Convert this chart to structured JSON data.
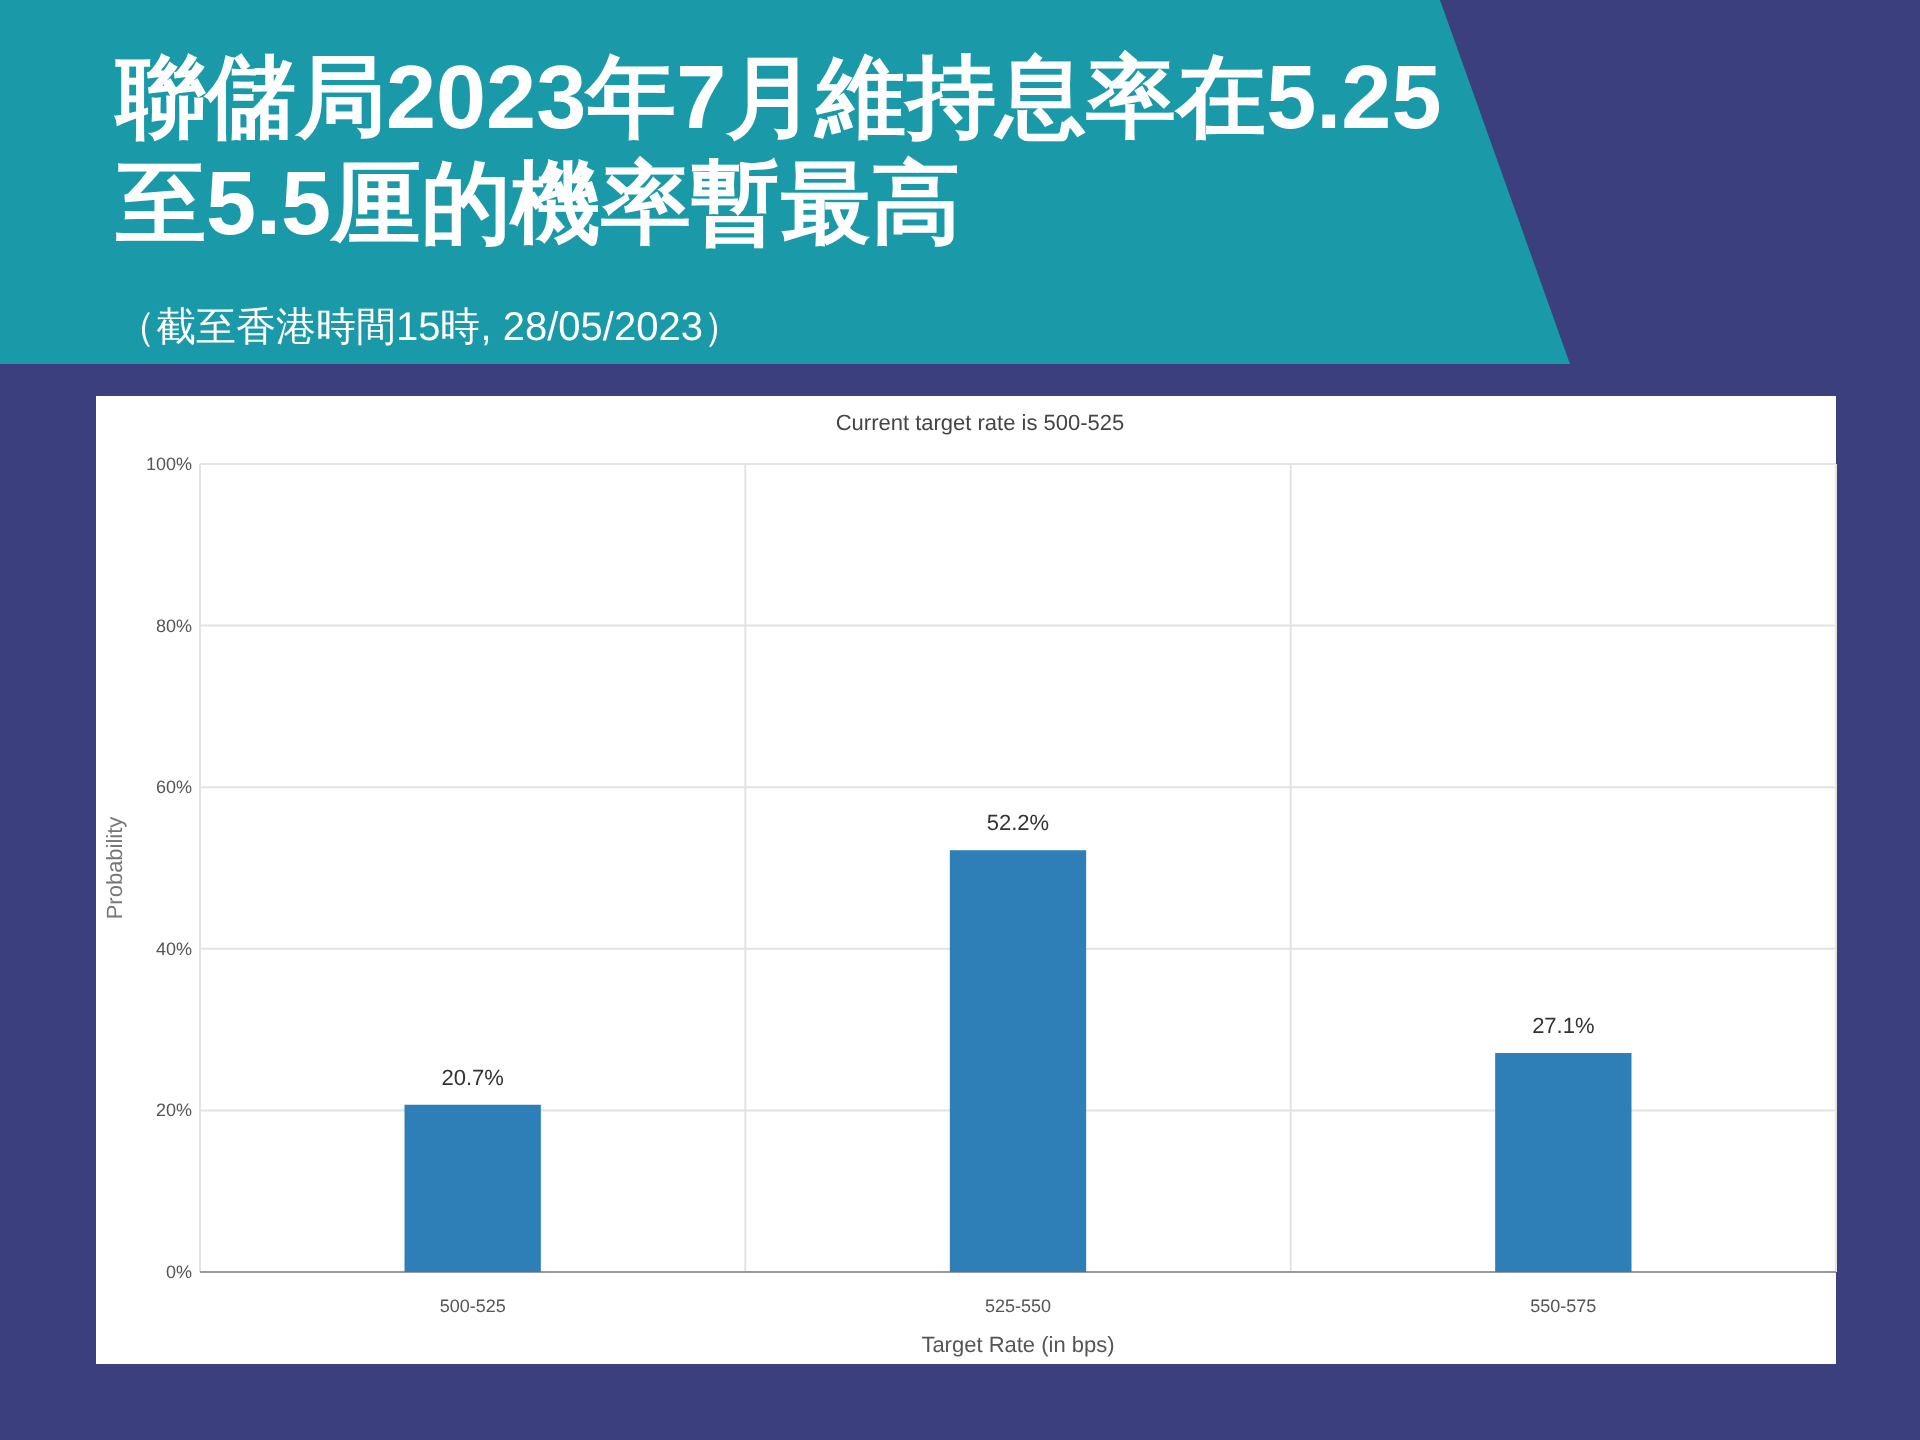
{
  "chart_data": {
    "type": "bar",
    "title": "聯儲局2023年7月維持息率在5.25至5.5厘的機率暫最高",
    "subtitle": "Current target rate is 500-525",
    "annotations": [
      "（截至香港時間15時, 28/05/2023）"
    ],
    "xlabel": "Target Rate (in bps)",
    "ylabel": "Probability",
    "categories": [
      "500-525",
      "525-550",
      "550-575"
    ],
    "values": [
      20.7,
      52.2,
      27.1
    ],
    "value_labels": [
      "20.7%",
      "52.2%",
      "27.1%"
    ],
    "color": "#2e7fb8",
    "ylim": [
      0,
      100
    ],
    "yticks": [
      {
        "value": 0,
        "label": "0%"
      },
      {
        "value": 20,
        "label": "20%"
      },
      {
        "value": 40,
        "label": "40%"
      },
      {
        "value": 60,
        "label": "60%"
      },
      {
        "value": 80,
        "label": "80%"
      },
      {
        "value": 100,
        "label": "100%"
      }
    ],
    "grid": true
  }
}
